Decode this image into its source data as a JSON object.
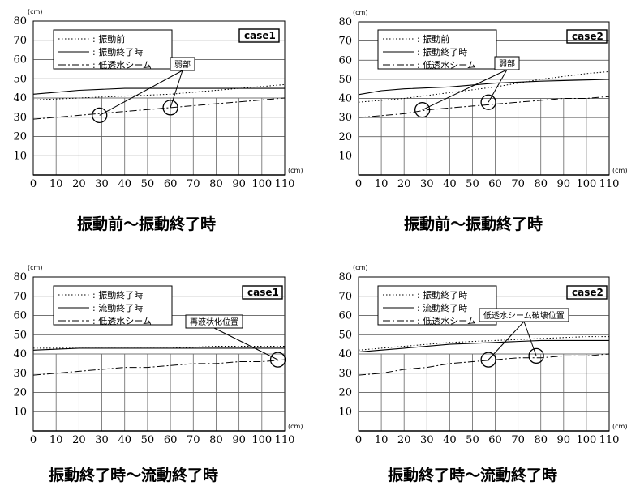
{
  "chart_data": [
    {
      "type": "line",
      "case_label": "case1",
      "caption": "振動前～振動終了時",
      "xunit": "(cm)",
      "yunit": "(cm)",
      "xlim": [
        0,
        110
      ],
      "ylim": [
        0,
        80
      ],
      "xticks": [
        "0",
        "10",
        "20",
        "30",
        "40",
        "50",
        "60",
        "70",
        "80",
        "90",
        "100",
        "110"
      ],
      "yticks": [
        "10",
        "20",
        "30",
        "40",
        "50",
        "60",
        "70",
        "80"
      ],
      "legend": [
        ": 振動前",
        ": 振動終了時",
        ": 低透水シーム"
      ],
      "annotation": {
        "text": "弱部",
        "targets": [
          [
            29,
            31
          ],
          [
            60,
            35
          ]
        ]
      },
      "series": [
        {
          "name": ": 振動前",
          "style": "dotted",
          "x": [
            0,
            20,
            40,
            60,
            80,
            100,
            110
          ],
          "y": [
            39,
            40,
            41,
            42,
            44,
            46,
            47
          ]
        },
        {
          "name": ": 振動終了時",
          "style": "solid",
          "x": [
            0,
            10,
            20,
            40,
            60,
            80,
            110
          ],
          "y": [
            42,
            43,
            44,
            45,
            45,
            45,
            45
          ]
        },
        {
          "name": ": 低透水シーム",
          "style": "dashdot",
          "x": [
            0,
            10,
            20,
            30,
            40,
            50,
            60,
            70,
            80,
            90,
            100,
            110
          ],
          "y": [
            29,
            30,
            31,
            32,
            33,
            34,
            35,
            36,
            37,
            38,
            39,
            40
          ]
        }
      ]
    },
    {
      "type": "line",
      "case_label": "case2",
      "caption": "振動前～振動終了時",
      "xunit": "(cm)",
      "yunit": "(cm)",
      "xlim": [
        0,
        110
      ],
      "ylim": [
        0,
        80
      ],
      "xticks": [
        "0",
        "10",
        "20",
        "30",
        "40",
        "50",
        "60",
        "70",
        "80",
        "90",
        "100",
        "110"
      ],
      "yticks": [
        "10",
        "20",
        "30",
        "40",
        "50",
        "60",
        "70",
        "80"
      ],
      "legend": [
        ": 振動前",
        ": 振動終了時",
        ": 低透水シーム"
      ],
      "annotation": {
        "text": "弱部",
        "targets": [
          [
            28,
            34
          ],
          [
            57,
            38
          ]
        ]
      },
      "series": [
        {
          "name": ": 振動前",
          "style": "dotted",
          "x": [
            0,
            20,
            40,
            60,
            80,
            100,
            110
          ],
          "y": [
            38,
            40,
            43,
            46,
            50,
            53,
            54
          ]
        },
        {
          "name": ": 振動終了時",
          "style": "solid",
          "x": [
            0,
            10,
            20,
            40,
            60,
            80,
            110
          ],
          "y": [
            42,
            44,
            45,
            46,
            48,
            49,
            50
          ]
        },
        {
          "name": ": 低透水シーム",
          "style": "dashdot",
          "x": [
            0,
            10,
            20,
            30,
            40,
            50,
            60,
            70,
            80,
            90,
            100,
            110
          ],
          "y": [
            30,
            31,
            32,
            34,
            35,
            36,
            37,
            38,
            39,
            40,
            40,
            41
          ]
        }
      ]
    },
    {
      "type": "line",
      "case_label": "case1",
      "caption": "振動終了時～流動終了時",
      "xunit": "(cm)",
      "yunit": "(cm)",
      "xlim": [
        0,
        110
      ],
      "ylim": [
        0,
        80
      ],
      "xticks": [
        "0",
        "10",
        "20",
        "30",
        "40",
        "50",
        "60",
        "70",
        "80",
        "90",
        "100",
        "110"
      ],
      "yticks": [
        "10",
        "20",
        "30",
        "40",
        "50",
        "60",
        "70",
        "80"
      ],
      "legend": [
        ": 振動終了時",
        ": 流動終了時",
        ": 低透水シーム"
      ],
      "annotation": {
        "text": "再液状化位置",
        "targets": [
          [
            107,
            37
          ]
        ]
      },
      "series": [
        {
          "name": ": 振動終了時",
          "style": "dotted",
          "x": [
            0,
            20,
            40,
            60,
            80,
            100,
            110
          ],
          "y": [
            43,
            43,
            43,
            43,
            44,
            44,
            44
          ]
        },
        {
          "name": ": 流動終了時",
          "style": "solid",
          "x": [
            0,
            20,
            40,
            60,
            80,
            100,
            110
          ],
          "y": [
            42,
            43,
            43,
            43,
            43,
            43,
            43
          ]
        },
        {
          "name": ": 低透水シーム",
          "style": "dashdot",
          "x": [
            0,
            10,
            20,
            30,
            40,
            50,
            60,
            70,
            80,
            90,
            100,
            110
          ],
          "y": [
            29,
            30,
            31,
            32,
            33,
            33,
            34,
            35,
            35,
            36,
            36,
            37
          ]
        }
      ]
    },
    {
      "type": "line",
      "case_label": "case2",
      "caption": "振動終了時～流動終了時",
      "xunit": "(cm)",
      "yunit": "(cm)",
      "xlim": [
        0,
        110
      ],
      "ylim": [
        0,
        80
      ],
      "xticks": [
        "0",
        "10",
        "20",
        "30",
        "40",
        "50",
        "60",
        "70",
        "80",
        "90",
        "100",
        "110"
      ],
      "yticks": [
        "10",
        "20",
        "30",
        "40",
        "50",
        "60",
        "70",
        "80"
      ],
      "legend": [
        ": 振動終了時",
        ": 流動終了時",
        ": 低透水シーム"
      ],
      "annotation": {
        "text": "低透水シーム破壊位置",
        "targets": [
          [
            57,
            37
          ],
          [
            78,
            39
          ]
        ]
      },
      "series": [
        {
          "name": ": 振動終了時",
          "style": "dotted",
          "x": [
            0,
            20,
            40,
            60,
            80,
            100,
            110
          ],
          "y": [
            42,
            44,
            46,
            47,
            48,
            49,
            49
          ]
        },
        {
          "name": ": 流動終了時",
          "style": "solid",
          "x": [
            0,
            20,
            40,
            60,
            80,
            100,
            110
          ],
          "y": [
            41,
            43,
            45,
            46,
            47,
            47,
            47
          ]
        },
        {
          "name": ": 低透水シーム",
          "style": "dashdot",
          "x": [
            0,
            10,
            20,
            30,
            40,
            50,
            60,
            70,
            80,
            90,
            100,
            110
          ],
          "y": [
            29,
            30,
            32,
            33,
            35,
            36,
            37,
            38,
            38,
            39,
            39,
            40
          ]
        }
      ]
    }
  ]
}
